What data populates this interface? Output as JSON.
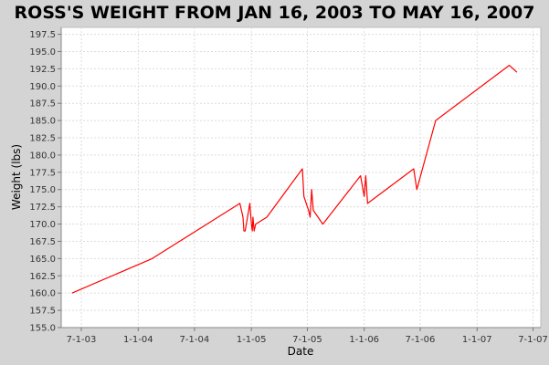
{
  "chart_data": {
    "type": "line",
    "title": "ROSS'S WEIGHT FROM JAN 16, 2003 TO MAY 16, 2007",
    "xlabel": "Date",
    "ylabel": "Weight (lbs)",
    "ylim": [
      155.0,
      198.5
    ],
    "xlim": [
      "2003-04-27",
      "2007-07-26"
    ],
    "yticks": [
      "155.0",
      "157.5",
      "160.0",
      "162.5",
      "165.0",
      "167.5",
      "170.0",
      "172.5",
      "175.0",
      "177.5",
      "180.0",
      "182.5",
      "185.0",
      "187.5",
      "190.0",
      "192.5",
      "195.0",
      "197.5"
    ],
    "xticks": [
      {
        "date": "2003-07-01",
        "label": "7-1-03"
      },
      {
        "date": "2004-01-01",
        "label": "1-1-04"
      },
      {
        "date": "2004-07-01",
        "label": "7-1-04"
      },
      {
        "date": "2005-01-01",
        "label": "1-1-05"
      },
      {
        "date": "2005-07-01",
        "label": "7-1-05"
      },
      {
        "date": "2006-01-01",
        "label": "1-1-06"
      },
      {
        "date": "2006-07-01",
        "label": "7-1-06"
      },
      {
        "date": "2007-01-01",
        "label": "1-1-07"
      },
      {
        "date": "2007-07-01",
        "label": "7-1-07"
      }
    ],
    "grid": true,
    "series": [
      {
        "color": "#ff0000",
        "points": [
          {
            "x": "2003-06-01",
            "y": 160.0
          },
          {
            "x": "2004-02-15",
            "y": 165.0
          },
          {
            "x": "2004-11-25",
            "y": 173.0
          },
          {
            "x": "2004-12-05",
            "y": 171.0
          },
          {
            "x": "2004-12-08",
            "y": 169.0
          },
          {
            "x": "2004-12-12",
            "y": 169.0
          },
          {
            "x": "2004-12-27",
            "y": 173.0
          },
          {
            "x": "2005-01-01",
            "y": 170.0
          },
          {
            "x": "2005-01-04",
            "y": 169.0
          },
          {
            "x": "2005-01-06",
            "y": 171.0
          },
          {
            "x": "2005-01-10",
            "y": 169.0
          },
          {
            "x": "2005-01-15",
            "y": 170.0
          },
          {
            "x": "2005-02-20",
            "y": 171.0
          },
          {
            "x": "2005-06-15",
            "y": 178.0
          },
          {
            "x": "2005-06-20",
            "y": 174.0
          },
          {
            "x": "2005-07-05",
            "y": 172.0
          },
          {
            "x": "2005-07-10",
            "y": 171.0
          },
          {
            "x": "2005-07-15",
            "y": 175.0
          },
          {
            "x": "2005-07-20",
            "y": 172.0
          },
          {
            "x": "2005-08-20",
            "y": 170.0
          },
          {
            "x": "2005-12-20",
            "y": 177.0
          },
          {
            "x": "2006-01-01",
            "y": 174.0
          },
          {
            "x": "2006-01-06",
            "y": 177.0
          },
          {
            "x": "2006-01-12",
            "y": 173.0
          },
          {
            "x": "2006-06-10",
            "y": 178.0
          },
          {
            "x": "2006-06-20",
            "y": 175.0
          },
          {
            "x": "2006-08-20",
            "y": 185.0
          },
          {
            "x": "2007-04-15",
            "y": 193.0
          },
          {
            "x": "2007-05-10",
            "y": 192.0
          }
        ]
      }
    ]
  }
}
